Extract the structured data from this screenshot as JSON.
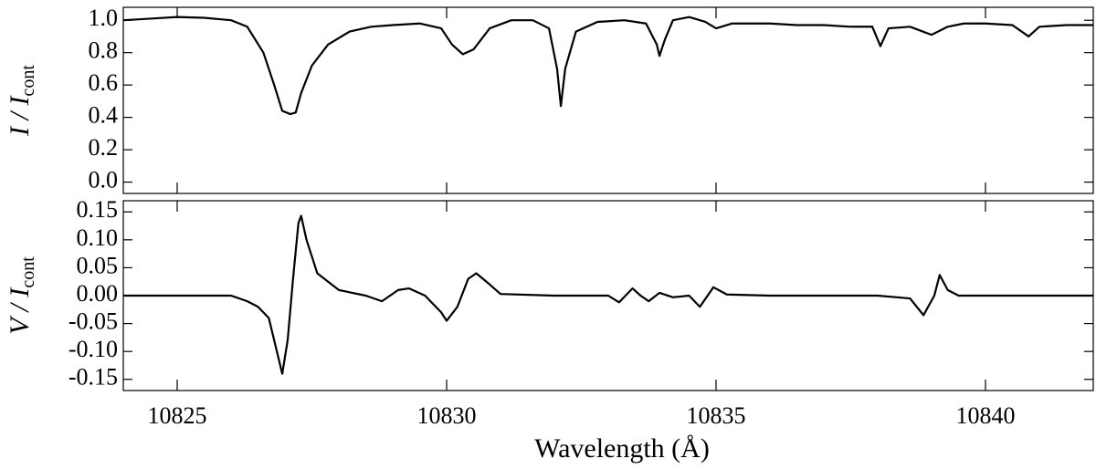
{
  "chart_data": [
    {
      "type": "line",
      "y_label": "I / I",
      "y_label_sub": "cont",
      "color": "#000000",
      "xlim": [
        10824,
        10842
      ],
      "ylim": [
        -0.07,
        1.08
      ],
      "xticks": [
        10825,
        10830,
        10835,
        10840
      ],
      "yticks": [
        {
          "value": 0,
          "label": "0.0"
        },
        0.2,
        0.4,
        0.6,
        0.8,
        {
          "value": 1,
          "label": "1.0"
        }
      ],
      "x": [
        10824.0,
        10824.5,
        10825,
        10825.5,
        10826,
        10826.3,
        10826.6,
        10826.8,
        10826.95,
        10827.1,
        10827.2,
        10827.3,
        10827.5,
        10827.8,
        10828.2,
        10828.6,
        10829,
        10829.5,
        10829.9,
        10830.1,
        10830.3,
        10830.5,
        10830.8,
        10831.2,
        10831.6,
        10831.9,
        10832.05,
        10832.12,
        10832.2,
        10832.4,
        10832.8,
        10833.3,
        10833.7,
        10833.9,
        10833.95,
        10834.05,
        10834.2,
        10834.5,
        10834.8,
        10835,
        10835.3,
        10836,
        10836.5,
        10837,
        10837.5,
        10837.9,
        10838.05,
        10838.2,
        10838.6,
        10839,
        10839.3,
        10839.6,
        10840,
        10840.5,
        10840.8,
        10841.0,
        10841.5,
        10842
      ],
      "values": [
        1.0,
        1.01,
        1.02,
        1.015,
        1.0,
        0.96,
        0.8,
        0.6,
        0.44,
        0.42,
        0.43,
        0.55,
        0.72,
        0.85,
        0.93,
        0.96,
        0.97,
        0.98,
        0.95,
        0.85,
        0.79,
        0.82,
        0.95,
        1.0,
        1.0,
        0.95,
        0.7,
        0.47,
        0.7,
        0.93,
        0.99,
        1.0,
        0.98,
        0.85,
        0.78,
        0.88,
        1.0,
        1.02,
        0.99,
        0.95,
        0.98,
        0.98,
        0.97,
        0.97,
        0.96,
        0.96,
        0.84,
        0.95,
        0.96,
        0.91,
        0.96,
        0.98,
        0.98,
        0.97,
        0.9,
        0.96,
        0.97,
        0.97
      ]
    },
    {
      "type": "line",
      "y_label": "V / I",
      "y_label_sub": "cont",
      "x_label": "Wavelength (Å)",
      "color": "#000000",
      "xlim": [
        10824,
        10842
      ],
      "ylim": [
        -0.17,
        0.17
      ],
      "xticks": [
        10825,
        10830,
        10835,
        10840
      ],
      "yticks": [
        -0.15,
        {
          "value": -0.1,
          "label": "-0.10"
        },
        -0.05,
        {
          "value": 0,
          "label": "0.00"
        },
        0.05,
        {
          "value": 0.1,
          "label": "0.10"
        },
        0.15
      ],
      "x": [
        10824,
        10825,
        10826,
        10826.3,
        10826.5,
        10826.7,
        10826.85,
        10826.95,
        10827.05,
        10827.15,
        10827.25,
        10827.3,
        10827.4,
        10827.6,
        10828,
        10828.5,
        10828.8,
        10829.1,
        10829.3,
        10829.6,
        10829.9,
        10830,
        10830.2,
        10830.4,
        10830.55,
        10830.8,
        10831,
        10832,
        10833,
        10833.2,
        10833.45,
        10833.6,
        10833.75,
        10833.95,
        10834.2,
        10834.5,
        10834.7,
        10834.95,
        10835.2,
        10836,
        10837,
        10837.5,
        10838,
        10838.6,
        10838.85,
        10839.05,
        10839.15,
        10839.3,
        10839.5,
        10840,
        10841,
        10842
      ],
      "values": [
        0,
        0,
        0,
        -0.01,
        -0.02,
        -0.04,
        -0.1,
        -0.14,
        -0.08,
        0.03,
        0.13,
        0.143,
        0.1,
        0.04,
        0.01,
        0.0,
        -0.01,
        0.01,
        0.013,
        0.0,
        -0.03,
        -0.045,
        -0.02,
        0.03,
        0.04,
        0.02,
        0.003,
        0.0,
        0.0,
        -0.012,
        0.013,
        0.0,
        -0.01,
        0.005,
        -0.003,
        0.0,
        -0.02,
        0.015,
        0.002,
        0.0,
        0.0,
        0.0,
        0.0,
        -0.005,
        -0.035,
        0.0,
        0.037,
        0.01,
        0.0,
        0.0,
        0.0,
        0.0
      ]
    }
  ]
}
